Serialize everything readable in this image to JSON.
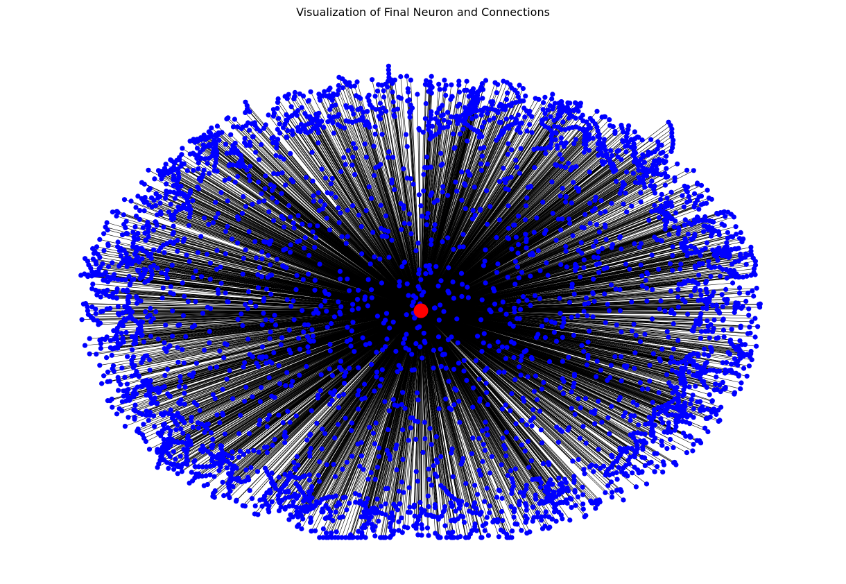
{
  "figure": {
    "title": "Visualization of Final Neuron and Connections"
  },
  "graph": {
    "center_node_color": "#ff0000",
    "peripheral_node_color": "#0000ff",
    "edge_color": "#000000",
    "background_color": "#ffffff"
  }
}
